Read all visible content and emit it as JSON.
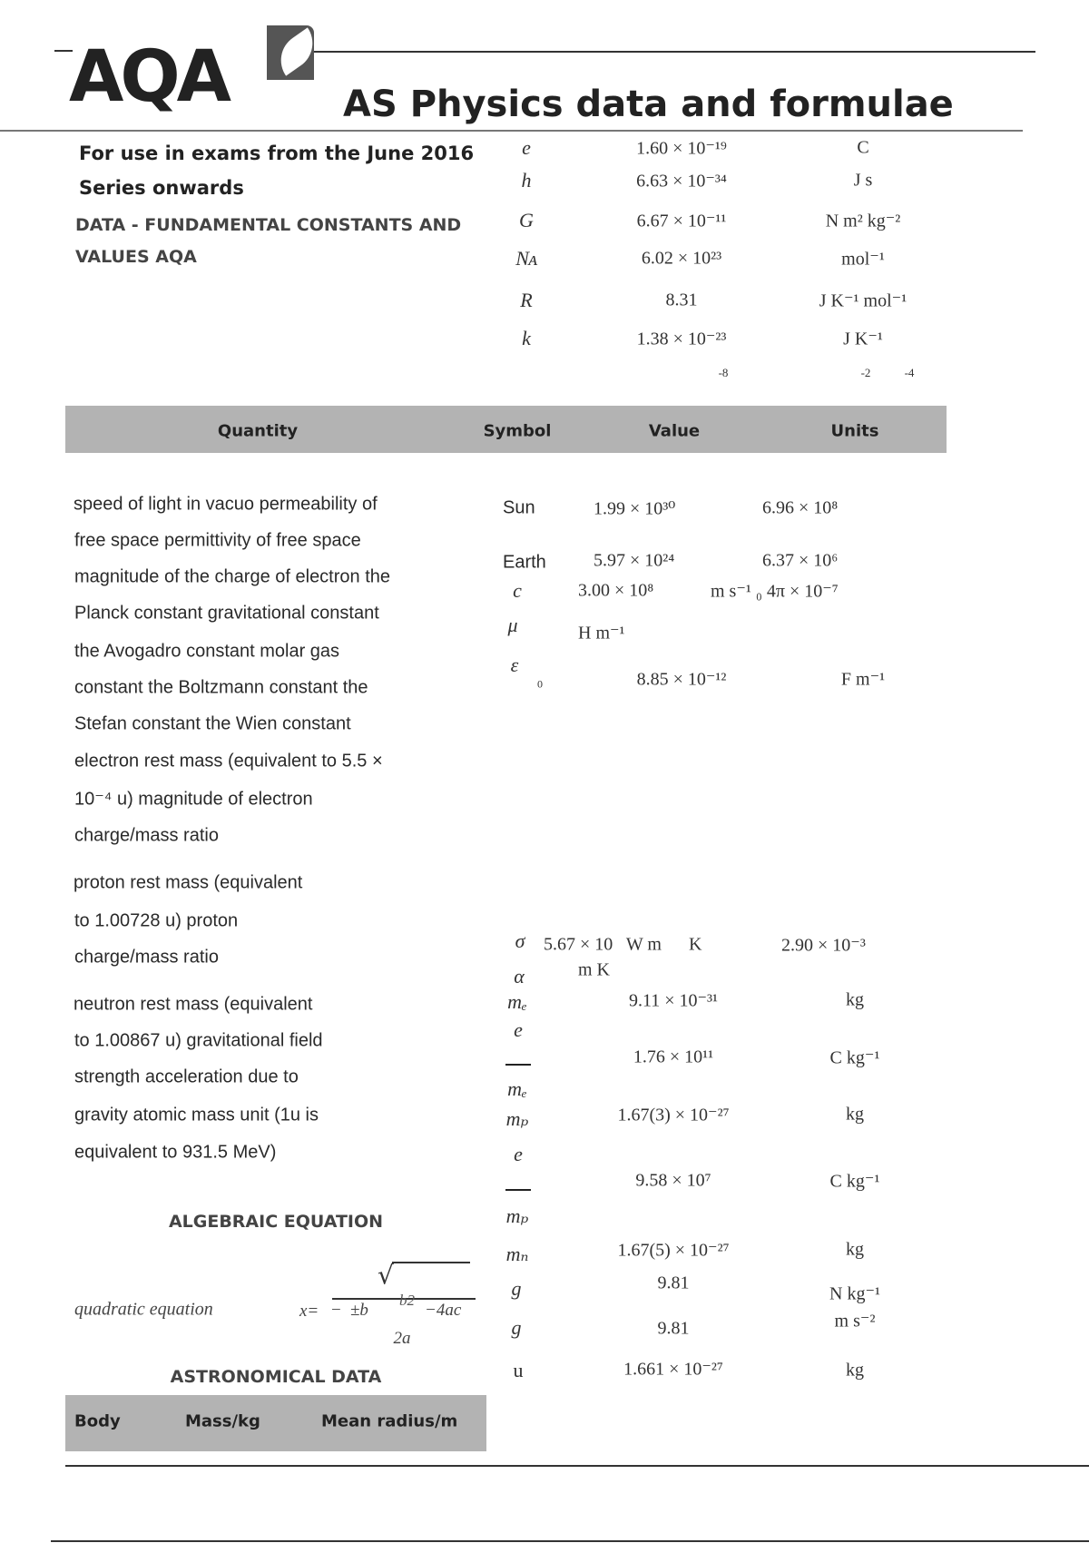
{
  "header": {
    "logo_text": "AQA",
    "title": "AS Physics data and formulae",
    "subtitle_line1": "For use in exams from the June 2016",
    "subtitle_line2": "Series onwards",
    "section_line1": "DATA - FUNDAMENTAL CONSTANTS AND",
    "section_line2": "VALUES AQA"
  },
  "top_constants": [
    {
      "symbol": "e",
      "value": "1.60 × 10⁻¹⁹",
      "units": "C"
    },
    {
      "symbol": "h",
      "value": "6.63 × 10⁻³⁴",
      "units": "J s"
    },
    {
      "symbol": "G",
      "value": "6.67 × 10⁻¹¹",
      "units": "N m² kg⁻²"
    },
    {
      "symbol": "Nᴀ",
      "value": "6.02 × 10²³",
      "units": "mol⁻¹"
    },
    {
      "symbol": "R",
      "value": "8.31",
      "units": "J K⁻¹ mol⁻¹"
    },
    {
      "symbol": "k",
      "value": "1.38 × 10⁻²³",
      "units": "J K⁻¹"
    }
  ],
  "stray_exponents": {
    "value": "-8",
    "units_a": "-2",
    "units_b": "-4"
  },
  "table_header": {
    "quantity": "Quantity",
    "symbol": "Symbol",
    "value": "Value",
    "units": "Units"
  },
  "quantity_lines": [
    "speed of light in vacuo permeability of",
    "free space permittivity of free space",
    "magnitude of the charge of electron the",
    "Planck constant gravitational constant",
    "the Avogadro constant molar gas",
    "constant the Boltzmann constant the",
    "Stefan constant the Wien constant",
    "electron rest mass (equivalent to 5.5 ×",
    "10⁻⁴ u) magnitude of electron",
    "charge/mass ratio"
  ],
  "proton_lines": [
    "proton rest mass (equivalent",
    "to 1.00728 u) proton",
    "charge/mass ratio"
  ],
  "neutron_lines": [
    "neutron rest mass (equivalent",
    "to 1.00867 u) gravitational field",
    "strength acceleration due to",
    "gravity atomic mass unit (1u is",
    "equivalent to 931.5 MeV)"
  ],
  "astro_rows": [
    {
      "body": "Sun",
      "mass": "1.99 × 10³⁰",
      "radius": "6.96 × 10⁸"
    },
    {
      "body": "Earth",
      "mass": "5.97 × 10²⁴",
      "radius": "6.37 × 10⁶"
    }
  ],
  "mid_constants": {
    "c_symbol": "c",
    "c_value": "3.00 × 10⁸",
    "c_units": "m s⁻¹ ₀ 4π × 10⁻⁷",
    "mu_symbol": "μ",
    "mu_units": "H m⁻¹",
    "eps_symbol": "ε",
    "eps_sub": "0",
    "eps_value": "8.85 × 10⁻¹²",
    "eps_units": "F m⁻¹"
  },
  "lower_constants": {
    "sigma_symbol": "σ",
    "sigma_text": "5.67 × 10   W m      K",
    "wien_value": "2.90 × 10⁻³",
    "alpha_symbol": "α",
    "alpha_units": "m K",
    "me_symbol": "mₑ",
    "me_value": "9.11 × 10⁻³¹",
    "me_units": "kg",
    "eme_num": "e",
    "eme_den": "mₑ",
    "eme_value": "1.76 × 10¹¹",
    "eme_units": "C kg⁻¹",
    "mp_symbol": "mₚ",
    "mp_value": "1.67(3) × 10⁻²⁷",
    "mp_units": "kg",
    "emp_num": "e",
    "emp_den": "mₚ",
    "emp_value": "9.58 × 10⁷",
    "emp_units": "C kg⁻¹",
    "mn_symbol": "mₙ",
    "mn_value": "1.67(5) × 10⁻²⁷",
    "mn_units": "kg",
    "g1_symbol": "g",
    "g1_value": "9.81",
    "g1_units": "N kg⁻¹",
    "g2_symbol": "g",
    "g2_value": "9.81",
    "g2_units": "m s⁻²",
    "u_symbol": "u",
    "u_value": "1.661 × 10⁻²⁷",
    "u_units": "kg"
  },
  "algebra": {
    "heading": "ALGEBRAIC EQUATION",
    "label": "quadratic equation",
    "x_eq": "x=",
    "minus": "−",
    "pm_b": "±b",
    "b2": "b2",
    "minus4ac": "−4ac",
    "denominator": "2a",
    "sqrt": "√"
  },
  "astronomical": {
    "heading": "ASTRONOMICAL DATA",
    "col_body": "Body",
    "col_mass": "Mass/kg",
    "col_radius": "Mean radius/m"
  }
}
